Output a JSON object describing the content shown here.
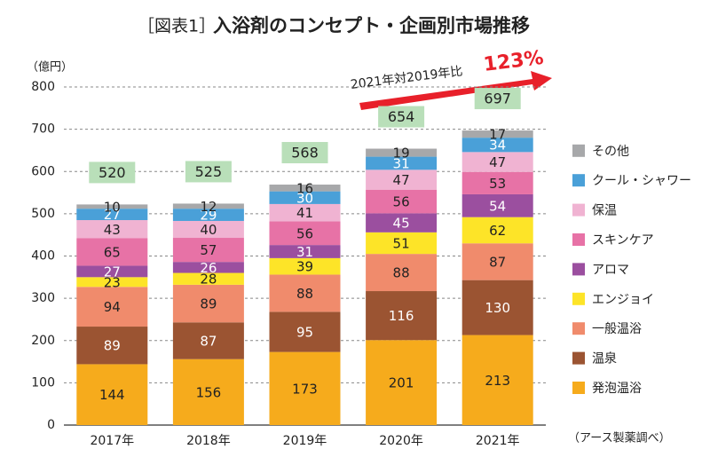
{
  "chart_data": {
    "type": "stacked_bar",
    "title_prefix": "［図表1］",
    "title": "入浴剤のコンセプト・企画別市場推移",
    "y_unit": "（億円）",
    "source": "（アース製薬調べ）",
    "annotation": "2021年対2019年比",
    "annotation_value": "123%",
    "categories": [
      "2017年",
      "2018年",
      "2019年",
      "2020年",
      "2021年"
    ],
    "totals": [
      520,
      525,
      568,
      654,
      697
    ],
    "series": [
      {
        "name": "発泡温浴",
        "color": "#f6ab1c",
        "values": [
          144,
          156,
          173,
          201,
          213
        ]
      },
      {
        "name": "温泉",
        "color": "#9b5432",
        "values": [
          89,
          87,
          95,
          116,
          130
        ]
      },
      {
        "name": "一般温浴",
        "color": "#f08b6c",
        "values": [
          94,
          89,
          88,
          88,
          87
        ]
      },
      {
        "name": "エンジョイ",
        "color": "#fde428",
        "values": [
          23,
          28,
          39,
          51,
          62
        ]
      },
      {
        "name": "アロマ",
        "color": "#9b4f9f",
        "values": [
          27,
          26,
          31,
          45,
          54
        ]
      },
      {
        "name": "スキンケア",
        "color": "#e772a6",
        "values": [
          65,
          57,
          56,
          56,
          53
        ]
      },
      {
        "name": "保温",
        "color": "#f0b3d2",
        "values": [
          43,
          40,
          41,
          47,
          47
        ]
      },
      {
        "name": "クール・シャワー",
        "color": "#4aa0d8",
        "values": [
          27,
          29,
          30,
          31,
          34
        ]
      },
      {
        "name": "その他",
        "color": "#a7a8aa",
        "values": [
          10,
          12,
          16,
          19,
          17
        ]
      }
    ],
    "ylim": [
      0,
      800
    ],
    "yticks": [
      0,
      100,
      200,
      300,
      400,
      500,
      600,
      700,
      800
    ],
    "grid": true
  }
}
